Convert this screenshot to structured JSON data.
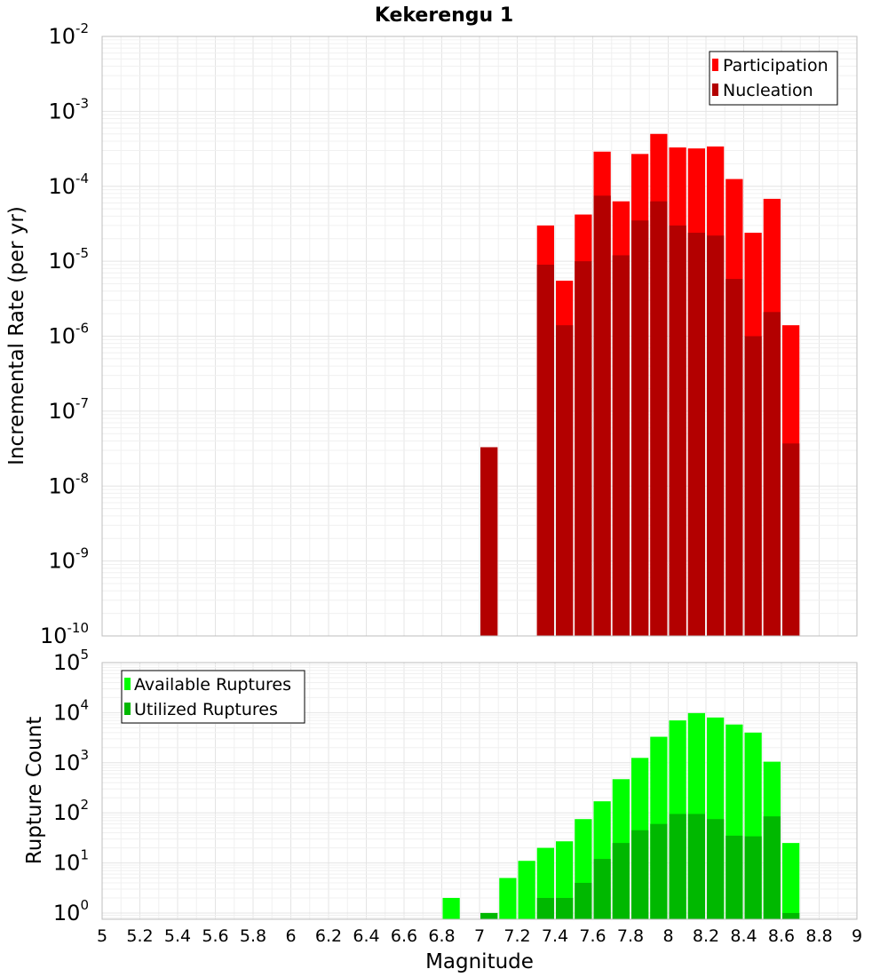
{
  "chart_data": [
    {
      "type": "bar",
      "title": "Kekerengu 1",
      "xlabel": "",
      "ylabel": "Incremental Rate (per yr)",
      "yscale": "log",
      "ylim": [
        1e-10,
        0.01
      ],
      "xlim": [
        5,
        9
      ],
      "bin_width": 0.1,
      "legend_position": "top-right",
      "grid": true,
      "categories": [
        7.05,
        7.35,
        7.45,
        7.55,
        7.65,
        7.75,
        7.85,
        7.95,
        8.05,
        8.15,
        8.25,
        8.35,
        8.45,
        8.55,
        8.65
      ],
      "series": [
        {
          "name": "Participation",
          "color": "#ff0000",
          "values": [
            3.3e-08,
            3e-05,
            5.5e-06,
            4.2e-05,
            0.00029,
            6.3e-05,
            0.00027,
            0.0005,
            0.00033,
            0.00032,
            0.00034,
            0.000125,
            2.4e-05,
            6.8e-05,
            1.4e-06
          ]
        },
        {
          "name": "Nucleation",
          "color": "#b30000",
          "values": [
            3.3e-08,
            9e-06,
            1.4e-06,
            1e-05,
            7.5e-05,
            1.2e-05,
            3.5e-05,
            6.3e-05,
            3e-05,
            2.4e-05,
            2.2e-05,
            5.8e-06,
            1e-06,
            2.1e-06,
            3.7e-08
          ]
        }
      ]
    },
    {
      "type": "bar",
      "title": "",
      "xlabel": "Magnitude",
      "ylabel": "Rupture Count",
      "yscale": "log",
      "ylim": [
        0.75,
        100000.0
      ],
      "xlim": [
        5,
        9
      ],
      "bin_width": 0.1,
      "legend_position": "top-left",
      "grid": true,
      "categories": [
        6.85,
        7.05,
        7.15,
        7.25,
        7.35,
        7.45,
        7.55,
        7.65,
        7.75,
        7.85,
        7.95,
        8.05,
        8.15,
        8.25,
        8.35,
        8.45,
        8.55,
        8.65
      ],
      "series": [
        {
          "name": "Available Ruptures",
          "color": "#00ff00",
          "values": [
            2,
            1,
            5,
            11,
            20,
            27,
            75,
            170,
            470,
            1250,
            3300,
            7000,
            9800,
            8000,
            5800,
            4000,
            1050,
            25
          ]
        },
        {
          "name": "Utilized Ruptures",
          "color": "#00b800",
          "values": [
            0,
            1,
            0,
            0,
            2,
            2,
            4,
            12,
            25,
            45,
            60,
            95,
            95,
            75,
            35,
            34,
            85,
            1
          ]
        }
      ]
    }
  ],
  "x_tick_labels": [
    "5",
    "5.2",
    "5.4",
    "5.6",
    "5.8",
    "6",
    "6.2",
    "6.4",
    "6.6",
    "6.8",
    "7",
    "7.2",
    "7.4",
    "7.6",
    "7.8",
    "8",
    "8.2",
    "8.4",
    "8.6",
    "8.8",
    "9"
  ],
  "top_y_ticks": [
    {
      "value": 0.01,
      "base": "10",
      "exp": "-2"
    },
    {
      "value": 0.001,
      "base": "10",
      "exp": "-3"
    },
    {
      "value": 0.0001,
      "base": "10",
      "exp": "-4"
    },
    {
      "value": 1e-05,
      "base": "10",
      "exp": "-5"
    },
    {
      "value": 1e-06,
      "base": "10",
      "exp": "-6"
    },
    {
      "value": 1e-07,
      "base": "10",
      "exp": "-7"
    },
    {
      "value": 1e-08,
      "base": "10",
      "exp": "-8"
    },
    {
      "value": 1e-09,
      "base": "10",
      "exp": "-9"
    },
    {
      "value": 1e-10,
      "base": "10",
      "exp": "-10"
    }
  ],
  "bottom_y_ticks": [
    {
      "value": 1,
      "base": "10",
      "exp": "0"
    },
    {
      "value": 10,
      "base": "10",
      "exp": "1"
    },
    {
      "value": 100,
      "base": "10",
      "exp": "2"
    },
    {
      "value": 1000,
      "base": "10",
      "exp": "3"
    },
    {
      "value": 10000,
      "base": "10",
      "exp": "4"
    },
    {
      "value": 100000,
      "base": "10",
      "exp": "5"
    }
  ]
}
